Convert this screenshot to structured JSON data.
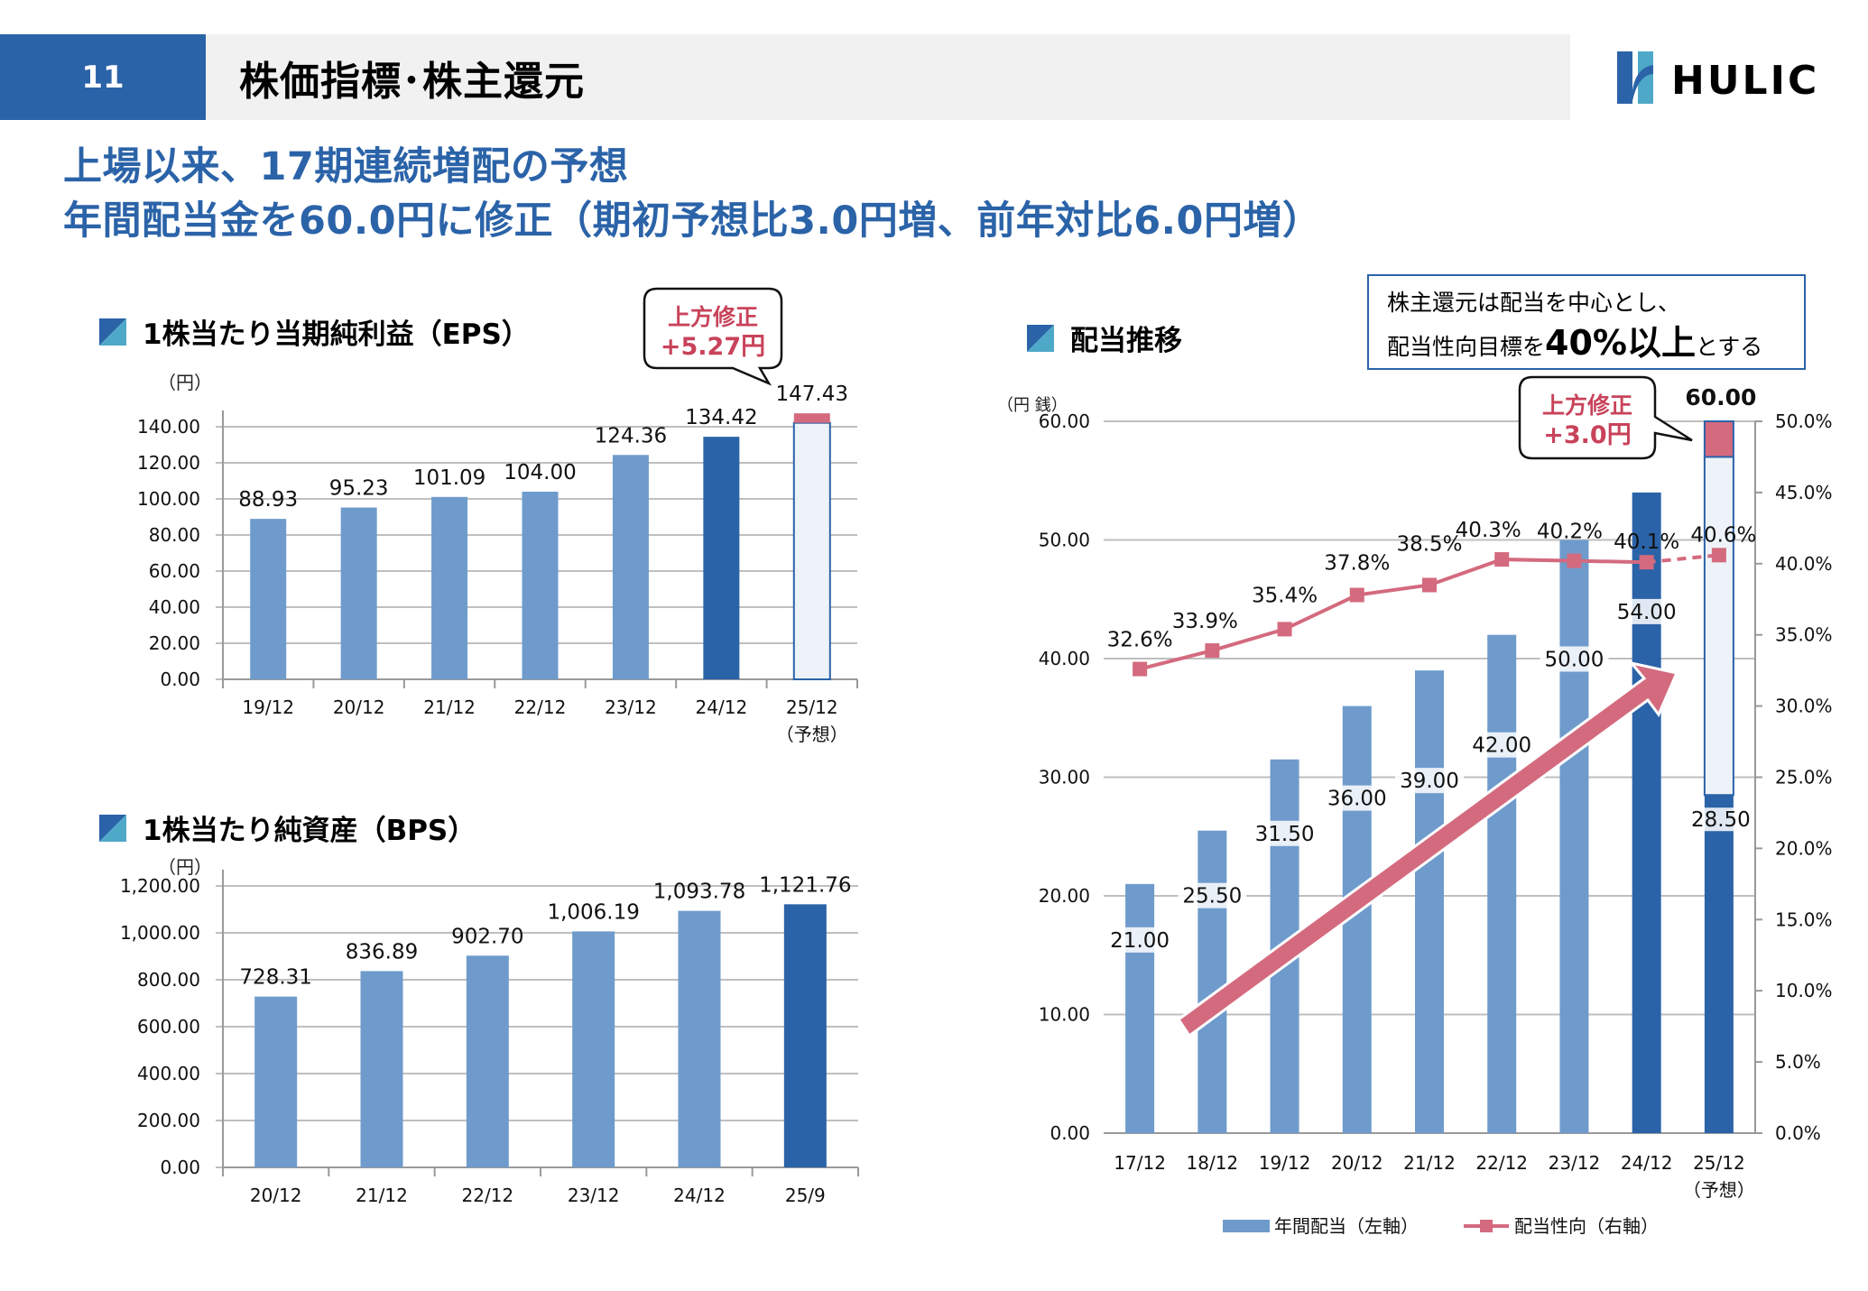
{
  "header": {
    "page_number": "11",
    "title": "株価指標･株主還元",
    "logo_text": "HULIC"
  },
  "headline": {
    "line1": "上場以来、17期連続増配の予想",
    "line2": "年間配当金を60.0円に修正（期初予想比3.0円増、前年対比6.0円増）"
  },
  "colors": {
    "brand_blue": "#2b63a8",
    "bar_light": "#6f9bcc",
    "bar_dark": "#2b63a8",
    "forecast_fill": "#eef3f9",
    "revision_pink": "#d46a7e",
    "callout_text": "#c8435a",
    "grid": "#bfbfbf"
  },
  "eps": {
    "section_title": "1株当たり当期純利益（EPS）",
    "unit": "（円）",
    "callout": {
      "line1": "上方修正",
      "line2": "+5.27円"
    }
  },
  "bps": {
    "section_title": "1株当たり純資産（BPS）",
    "unit": "（円）"
  },
  "dividend": {
    "section_title": "配当推移",
    "unit": "（円  銭）",
    "callout": {
      "line1": "上方修正",
      "line2": "+3.0円"
    },
    "policy": {
      "line1": "株主還元は配当を中心とし、",
      "line2_pre": "配当性向目標を",
      "line2_bold": "40%以上",
      "line2_post": "とする"
    },
    "legend": {
      "bars": "年間配当（左軸）",
      "line": "配当性向（右軸）"
    }
  },
  "chart_data": [
    {
      "id": "eps",
      "type": "bar",
      "title": "1株当たり当期純利益（EPS）",
      "ylabel": "（円）",
      "categories": [
        "19/12",
        "20/12",
        "21/12",
        "22/12",
        "23/12",
        "24/12",
        "25/12"
      ],
      "category_sublabels": [
        "",
        "",
        "",
        "",
        "",
        "",
        "（予想）"
      ],
      "values": [
        88.93,
        95.23,
        101.09,
        104.0,
        124.36,
        134.42,
        147.43
      ],
      "labels": [
        "88.93",
        "95.23",
        "101.09",
        "104.00",
        "124.36",
        "134.42",
        "147.43"
      ],
      "styles": [
        "light",
        "light",
        "light",
        "light",
        "light",
        "dark",
        "forecast"
      ],
      "forecast_revision": 5.27,
      "yticks": [
        "0.00",
        "20.00",
        "40.00",
        "60.00",
        "80.00",
        "100.00",
        "120.00",
        "140.00"
      ],
      "ylim": [
        0,
        140
      ],
      "grid": true
    },
    {
      "id": "bps",
      "type": "bar",
      "title": "1株当たり純資産（BPS）",
      "ylabel": "（円）",
      "categories": [
        "20/12",
        "21/12",
        "22/12",
        "23/12",
        "24/12",
        "25/9"
      ],
      "values": [
        728.31,
        836.89,
        902.7,
        1006.19,
        1093.78,
        1121.76
      ],
      "labels": [
        "728.31",
        "836.89",
        "902.70",
        "1,006.19",
        "1,093.78",
        "1,121.76"
      ],
      "styles": [
        "light",
        "light",
        "light",
        "light",
        "light",
        "dark"
      ],
      "yticks": [
        "0.00",
        "200.00",
        "400.00",
        "600.00",
        "800.00",
        "1,000.00",
        "1,200.00"
      ],
      "ylim": [
        0,
        1200
      ],
      "grid": true
    },
    {
      "id": "dividend",
      "type": "bar",
      "title": "配当推移",
      "ylabel": "（円  銭）",
      "categories": [
        "17/12",
        "18/12",
        "19/12",
        "20/12",
        "21/12",
        "22/12",
        "23/12",
        "24/12",
        "25/12"
      ],
      "category_sublabels": [
        "",
        "",
        "",
        "",
        "",
        "",
        "",
        "",
        "（予想）"
      ],
      "series": [
        {
          "name": "年間配当（左軸）",
          "axis": "left",
          "type": "bar",
          "values": [
            21.0,
            25.5,
            31.5,
            36.0,
            39.0,
            42.0,
            50.0,
            54.0,
            60.0
          ],
          "labels": [
            "21.00",
            "25.50",
            "31.50",
            "36.00",
            "39.00",
            "42.00",
            "50.00",
            "54.00",
            "60.00"
          ],
          "styles": [
            "light",
            "light",
            "light",
            "light",
            "light",
            "light",
            "light",
            "dark",
            "forecast"
          ],
          "forecast_interim": 28.5,
          "forecast_interim_label": "28.50",
          "forecast_revision": 3.0
        },
        {
          "name": "配当性向（右軸）",
          "axis": "right",
          "type": "line",
          "values": [
            32.6,
            33.9,
            35.4,
            37.8,
            38.5,
            40.3,
            40.2,
            40.1,
            40.6
          ],
          "labels": [
            "32.6%",
            "33.9%",
            "35.4%",
            "37.8%",
            "38.5%",
            "40.3%",
            "40.2%",
            "40.1%",
            "40.6%"
          ],
          "last_segment_dashed": true
        }
      ],
      "yticks_left": [
        "0.00",
        "10.00",
        "20.00",
        "30.00",
        "40.00",
        "50.00",
        "60.00"
      ],
      "ylim_left": [
        0,
        60
      ],
      "yticks_right": [
        "0.0%",
        "5.0%",
        "10.0%",
        "15.0%",
        "20.0%",
        "25.0%",
        "30.0%",
        "35.0%",
        "40.0%",
        "45.0%",
        "50.0%"
      ],
      "ylim_right": [
        0,
        50
      ],
      "grid": true,
      "legend_position": "bottom",
      "annotation": "upward trend arrow"
    }
  ]
}
